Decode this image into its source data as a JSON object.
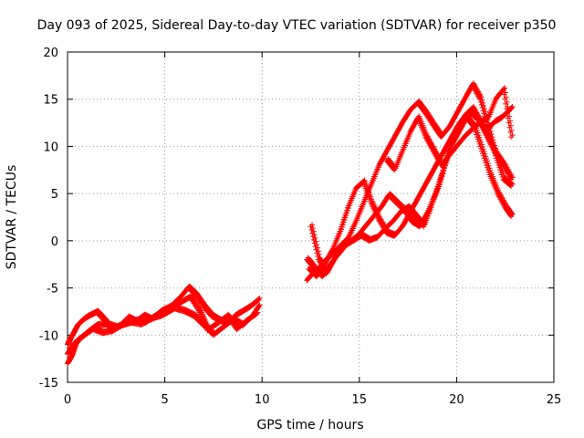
{
  "chart_data": {
    "type": "scatter",
    "title": "Day 093 of 2025, Sidereal Day-to-day VTEC variation (SDTVAR) for receiver p350",
    "xlabel": "GPS time / hours",
    "ylabel": "SDTVAR / TECUs",
    "xlim": [
      0,
      25
    ],
    "ylim": [
      -15,
      20
    ],
    "xticks": [
      "0",
      "5",
      "10",
      "15",
      "20",
      "25"
    ],
    "yticks": [
      "-15",
      "-10",
      "-5",
      "0",
      "5",
      "10",
      "15",
      "20"
    ],
    "grid": true,
    "legend": "none",
    "marker": "+",
    "series_color": "#ff0000",
    "series": [
      {
        "x": [
          0.0,
          0.1,
          0.3,
          0.5,
          0.8,
          1.1,
          1.5,
          1.9,
          2.3,
          2.7,
          3.1,
          3.5,
          3.9,
          4.3,
          4.8,
          5.3,
          5.8,
          6.2,
          6.6,
          7.0,
          7.4,
          7.8,
          8.2,
          8.6,
          9.0,
          9.4,
          9.8
        ],
        "y": [
          -11.0,
          -10.5,
          -9.8,
          -9.0,
          -8.4,
          -8.0,
          -7.6,
          -8.5,
          -9.6,
          -9.0,
          -8.2,
          -8.6,
          -8.0,
          -8.4,
          -7.5,
          -7.0,
          -6.0,
          -5.0,
          -5.8,
          -7.0,
          -8.0,
          -8.5,
          -8.8,
          -8.0,
          -7.5,
          -7.0,
          -6.3
        ]
      },
      {
        "x": [
          0.0,
          0.2,
          0.4,
          0.7,
          1.1,
          1.5,
          2.0,
          2.5,
          3.0,
          3.5,
          4.0,
          4.5,
          5.0,
          5.5,
          6.0,
          6.5,
          7.0,
          7.5,
          8.0,
          8.5,
          9.0,
          9.5,
          9.8
        ],
        "y": [
          -13.0,
          -12.2,
          -11.0,
          -10.3,
          -9.6,
          -9.0,
          -8.9,
          -9.2,
          -8.8,
          -8.5,
          -8.7,
          -8.0,
          -7.8,
          -7.2,
          -7.5,
          -8.0,
          -9.0,
          -10.0,
          -9.2,
          -8.4,
          -9.0,
          -8.0,
          -7.0
        ]
      },
      {
        "x": [
          0.0,
          0.2,
          0.5,
          0.9,
          1.3,
          1.8,
          2.3,
          2.8,
          3.3,
          3.8,
          4.3,
          4.8,
          5.3,
          5.8,
          6.3,
          6.8,
          7.2,
          7.7,
          8.2,
          8.7,
          9.2,
          9.7
        ],
        "y": [
          -12.0,
          -11.2,
          -10.6,
          -10.0,
          -9.4,
          -9.8,
          -9.6,
          -9.0,
          -8.7,
          -8.9,
          -8.3,
          -8.0,
          -7.4,
          -6.6,
          -6.0,
          -7.6,
          -9.5,
          -8.8,
          -8.0,
          -9.4,
          -8.5,
          -7.8
        ]
      },
      {
        "x": [
          12.3,
          12.6,
          12.9,
          13.2,
          13.6,
          14.0,
          14.4,
          14.8,
          15.2,
          15.6,
          16.0,
          16.4,
          16.8,
          17.2,
          17.6,
          18.0,
          18.4,
          18.8,
          19.2,
          19.6,
          20.0,
          20.4,
          20.8,
          21.2,
          21.6,
          22.0,
          22.4,
          22.8
        ],
        "y": [
          -4.2,
          -3.5,
          -3.0,
          -2.2,
          -1.5,
          -0.6,
          0.2,
          2.0,
          4.0,
          6.0,
          8.0,
          9.5,
          11.0,
          12.5,
          13.8,
          14.6,
          13.5,
          12.2,
          11.0,
          12.0,
          13.5,
          15.0,
          16.5,
          15.0,
          12.0,
          9.0,
          6.5,
          5.8
        ]
      },
      {
        "x": [
          12.4,
          12.8,
          13.2,
          13.6,
          14.0,
          14.4,
          14.8,
          15.2,
          15.6,
          16.0,
          16.4,
          16.8,
          17.2,
          17.6,
          18.0,
          18.4,
          18.8,
          19.2,
          19.6,
          20.0,
          20.4,
          20.8,
          21.2,
          21.6,
          22.0,
          22.4,
          22.8
        ],
        "y": [
          -3.0,
          -3.8,
          -2.5,
          -1.0,
          1.0,
          3.5,
          5.5,
          6.2,
          4.0,
          2.2,
          0.8,
          0.5,
          1.5,
          3.0,
          4.5,
          6.0,
          7.5,
          9.0,
          10.5,
          12.0,
          13.2,
          14.0,
          12.5,
          10.8,
          9.2,
          8.0,
          6.5
        ]
      },
      {
        "x": [
          12.5,
          12.9,
          13.3,
          13.7,
          14.1,
          14.5,
          14.9,
          15.3,
          15.7,
          16.1,
          16.5,
          16.9,
          17.3,
          17.7,
          18.1,
          18.5,
          18.9,
          19.3,
          19.7,
          20.1,
          20.5,
          20.9,
          21.3,
          21.7,
          22.1,
          22.5,
          22.8
        ],
        "y": [
          1.5,
          -2.0,
          -3.5,
          -2.0,
          -0.8,
          -0.2,
          0.5,
          1.5,
          2.5,
          3.5,
          4.8,
          4.0,
          3.2,
          2.0,
          1.5,
          3.0,
          5.0,
          7.5,
          10.0,
          11.5,
          13.0,
          12.0,
          9.5,
          7.0,
          5.0,
          3.5,
          2.6
        ]
      },
      {
        "x": [
          12.3,
          12.7,
          13.1,
          13.5,
          13.9,
          14.3,
          14.7,
          15.1,
          15.5,
          15.9,
          16.3,
          16.7,
          17.1,
          17.5,
          17.9,
          18.3,
          18.7,
          19.1,
          19.5,
          19.9,
          20.3,
          20.7,
          21.1,
          21.5,
          21.9,
          22.3,
          22.8
        ],
        "y": [
          -2.0,
          -3.0,
          -3.8,
          -2.5,
          -1.5,
          -0.5,
          0.0,
          0.5,
          0.0,
          0.3,
          1.2,
          2.0,
          3.0,
          3.5,
          2.5,
          1.5,
          3.8,
          6.0,
          9.0,
          11.0,
          12.5,
          13.5,
          12.8,
          11.5,
          12.5,
          13.0,
          14.0
        ]
      },
      {
        "x": [
          16.4,
          16.8,
          17.2,
          17.6,
          18.0,
          18.4,
          18.8,
          19.2,
          19.6,
          20.0,
          20.4,
          20.8,
          21.2,
          21.6,
          22.0,
          22.4,
          22.8
        ],
        "y": [
          8.5,
          7.5,
          9.5,
          11.5,
          13.0,
          11.0,
          9.5,
          8.0,
          9.0,
          10.0,
          11.0,
          11.8,
          12.5,
          13.0,
          15.0,
          16.0,
          11.0
        ]
      }
    ]
  }
}
